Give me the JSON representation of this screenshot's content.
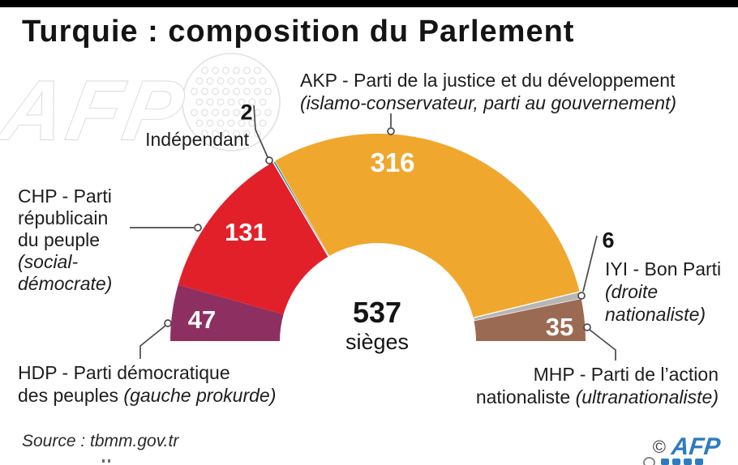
{
  "page": {
    "title": "Turquie : composition du Parlement"
  },
  "watermark": {
    "text": "AFP"
  },
  "chart_data": {
    "type": "pie",
    "subtype": "semicircle-donut",
    "title": "Turquie : composition du Parlement",
    "total_seats": 537,
    "unit": "sièges",
    "order_left_to_right": true,
    "segments": [
      {
        "party": "HDP",
        "name": "HDP - Parti démocratique des peuples",
        "orientation": "gauche prokurde",
        "value": 47,
        "color": "#8e2f62"
      },
      {
        "party": "CHP",
        "name": "CHP - Parti républicain du peuple",
        "orientation": "social-démocrate",
        "value": 131,
        "color": "#e2202a"
      },
      {
        "party": "Indépendant",
        "name": "Indépendant",
        "orientation": "",
        "value": 2,
        "color": "#2b8fa3"
      },
      {
        "party": "AKP",
        "name": "AKP - Parti de la justice et du développement",
        "orientation": "islamo-conservateur, parti au gouvernement",
        "value": 316,
        "color": "#f0a72e"
      },
      {
        "party": "IYI",
        "name": "IYI - Bon Parti",
        "orientation": "droite nationaliste",
        "value": 6,
        "color": "#b7b6b4"
      },
      {
        "party": "MHP",
        "name": "MHP - Parti de l’action nationaliste",
        "orientation": "ultranationaliste",
        "value": 35,
        "color": "#9b6a52"
      }
    ]
  },
  "labels": {
    "akp": {
      "name": "AKP - Parti de la justice et du développement",
      "desc": "\n(islamo-conservateur, parti au gouvernement)"
    },
    "ind": {
      "name": "Indépendant"
    },
    "chp": {
      "name": "CHP - Parti\nrépublicain\ndu peuple",
      "desc": "\n(social-\ndémocrate)"
    },
    "hdp": {
      "name": "HDP - Parti démocratique\ndes peuples",
      "desc": " (gauche prokurde)"
    },
    "iyi": {
      "name": "IYI - Bon Parti",
      "desc": "\n(droite\nnationaliste)"
    },
    "mhp": {
      "name": "MHP - Parti de l’action\nnationaliste",
      "desc": " (ultranationaliste)"
    }
  },
  "center": {
    "total": "537",
    "unit": "sièges"
  },
  "source": {
    "text": "Source : tbmm.gov.tr"
  },
  "footer": {
    "copyright": "©",
    "agency": "AFP"
  }
}
